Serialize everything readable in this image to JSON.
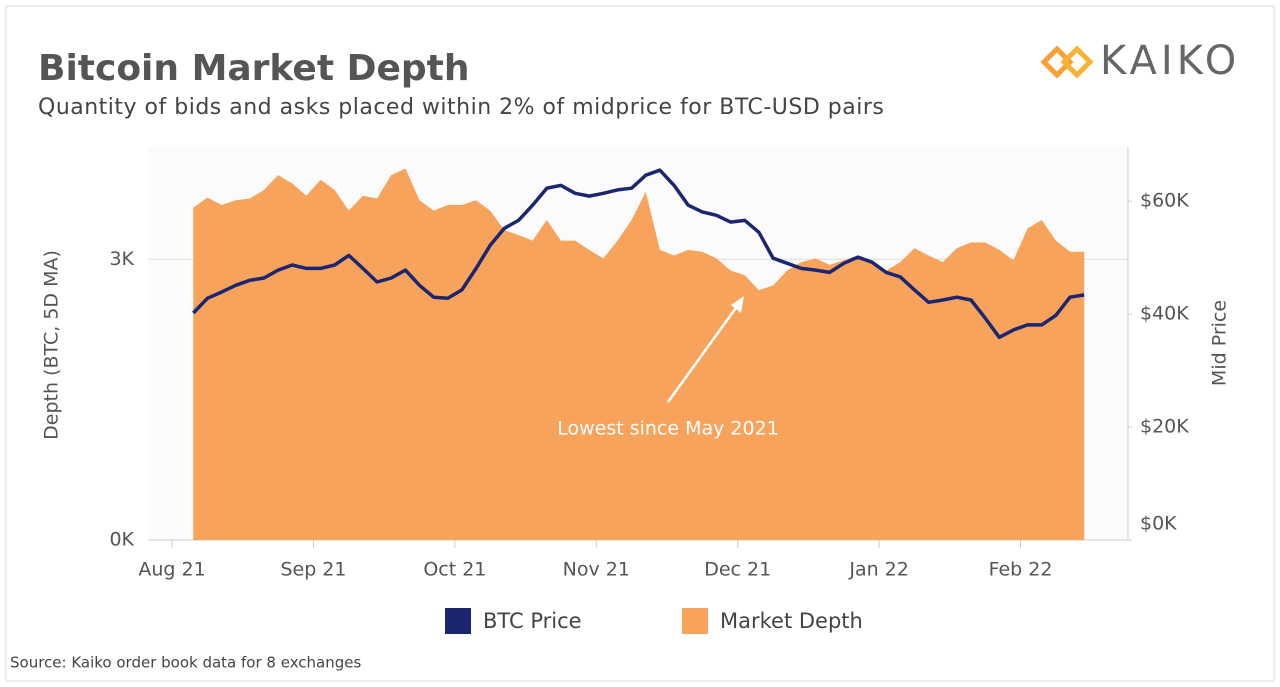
{
  "brand": "KAIKO",
  "chart_data": {
    "type": "line",
    "title": "Bitcoin Market Depth",
    "subtitle": "Quantity of bids and asks placed within 2% of midprice for BTC-USD pairs",
    "source": "Source: Kaiko order book data for 8 exchanges",
    "y_label": "Depth (BTC, 5D MA)",
    "y2_label": "Mid Price",
    "annotation": "Lowest since May 2021",
    "xlim": [
      -0.17,
      6.76
    ],
    "xticks": [
      {
        "value": 0,
        "label": "Aug 21"
      },
      {
        "value": 1,
        "label": "Sep 21"
      },
      {
        "value": 2,
        "label": "Oct 21"
      },
      {
        "value": 3,
        "label": "Nov 21"
      },
      {
        "value": 4,
        "label": "Dec 21"
      },
      {
        "value": 5,
        "label": "Jan 22"
      },
      {
        "value": 6,
        "label": "Feb 22"
      }
    ],
    "ylim": [
      0,
      4200
    ],
    "yticks": [
      {
        "value": 0,
        "label": "0K"
      },
      {
        "value": 3000,
        "label": "3K"
      }
    ],
    "y2lim": [
      0,
      69600
    ],
    "y2ticks": [
      {
        "value": 0,
        "label": "$0K"
      },
      {
        "value": 20000,
        "label": "$20K"
      },
      {
        "value": 40000,
        "label": "$40K"
      },
      {
        "value": 60000,
        "label": "$60K"
      }
    ],
    "grid": true,
    "x": [
      0.15,
      0.25,
      0.35,
      0.45,
      0.55,
      0.65,
      0.75,
      0.85,
      0.95,
      1.05,
      1.15,
      1.25,
      1.35,
      1.45,
      1.55,
      1.65,
      1.75,
      1.85,
      1.95,
      2.05,
      2.15,
      2.25,
      2.35,
      2.45,
      2.55,
      2.65,
      2.75,
      2.85,
      2.95,
      3.05,
      3.15,
      3.25,
      3.35,
      3.45,
      3.55,
      3.65,
      3.75,
      3.85,
      3.95,
      4.05,
      4.15,
      4.25,
      4.35,
      4.45,
      4.55,
      4.65,
      4.75,
      4.85,
      4.95,
      5.05,
      5.15,
      5.25,
      5.35,
      5.45,
      5.55,
      5.65,
      5.75,
      5.85,
      5.95,
      6.05,
      6.15,
      6.25,
      6.35,
      6.45
    ],
    "series": [
      {
        "name": "BTC Price",
        "color": "#1c2670",
        "kind": "line",
        "axis": "y2",
        "values": [
          40200,
          42800,
          43900,
          45100,
          46000,
          46400,
          47800,
          48700,
          48100,
          48100,
          48700,
          50400,
          48100,
          45700,
          46400,
          47800,
          45100,
          43000,
          42800,
          44300,
          48100,
          52200,
          55200,
          56600,
          59300,
          62300,
          62800,
          61400,
          60900,
          61400,
          62000,
          62300,
          64600,
          65500,
          62800,
          59300,
          58100,
          57500,
          56300,
          56600,
          54500,
          49900,
          49000,
          48100,
          47800,
          47400,
          49000,
          50100,
          49200,
          47400,
          46600,
          44300,
          42100,
          42500,
          43000,
          42500,
          39300,
          35900,
          37200,
          38100,
          38100,
          39800,
          43000,
          43400
        ]
      },
      {
        "name": "Market Depth",
        "color": "#f7a35c",
        "kind": "area",
        "values": [
          3550,
          3660,
          3580,
          3630,
          3650,
          3740,
          3900,
          3810,
          3680,
          3850,
          3740,
          3520,
          3680,
          3650,
          3900,
          3970,
          3630,
          3520,
          3580,
          3580,
          3630,
          3520,
          3310,
          3260,
          3200,
          3420,
          3200,
          3200,
          3100,
          3010,
          3200,
          3420,
          3720,
          3100,
          3040,
          3100,
          3080,
          3010,
          2880,
          2830,
          2670,
          2720,
          2880,
          2970,
          3010,
          2940,
          2990,
          3040,
          2970,
          2880,
          2970,
          3120,
          3040,
          2970,
          3120,
          3180,
          3180,
          3100,
          2990,
          3330,
          3420,
          3200,
          3080,
          3080
        ]
      }
    ]
  }
}
